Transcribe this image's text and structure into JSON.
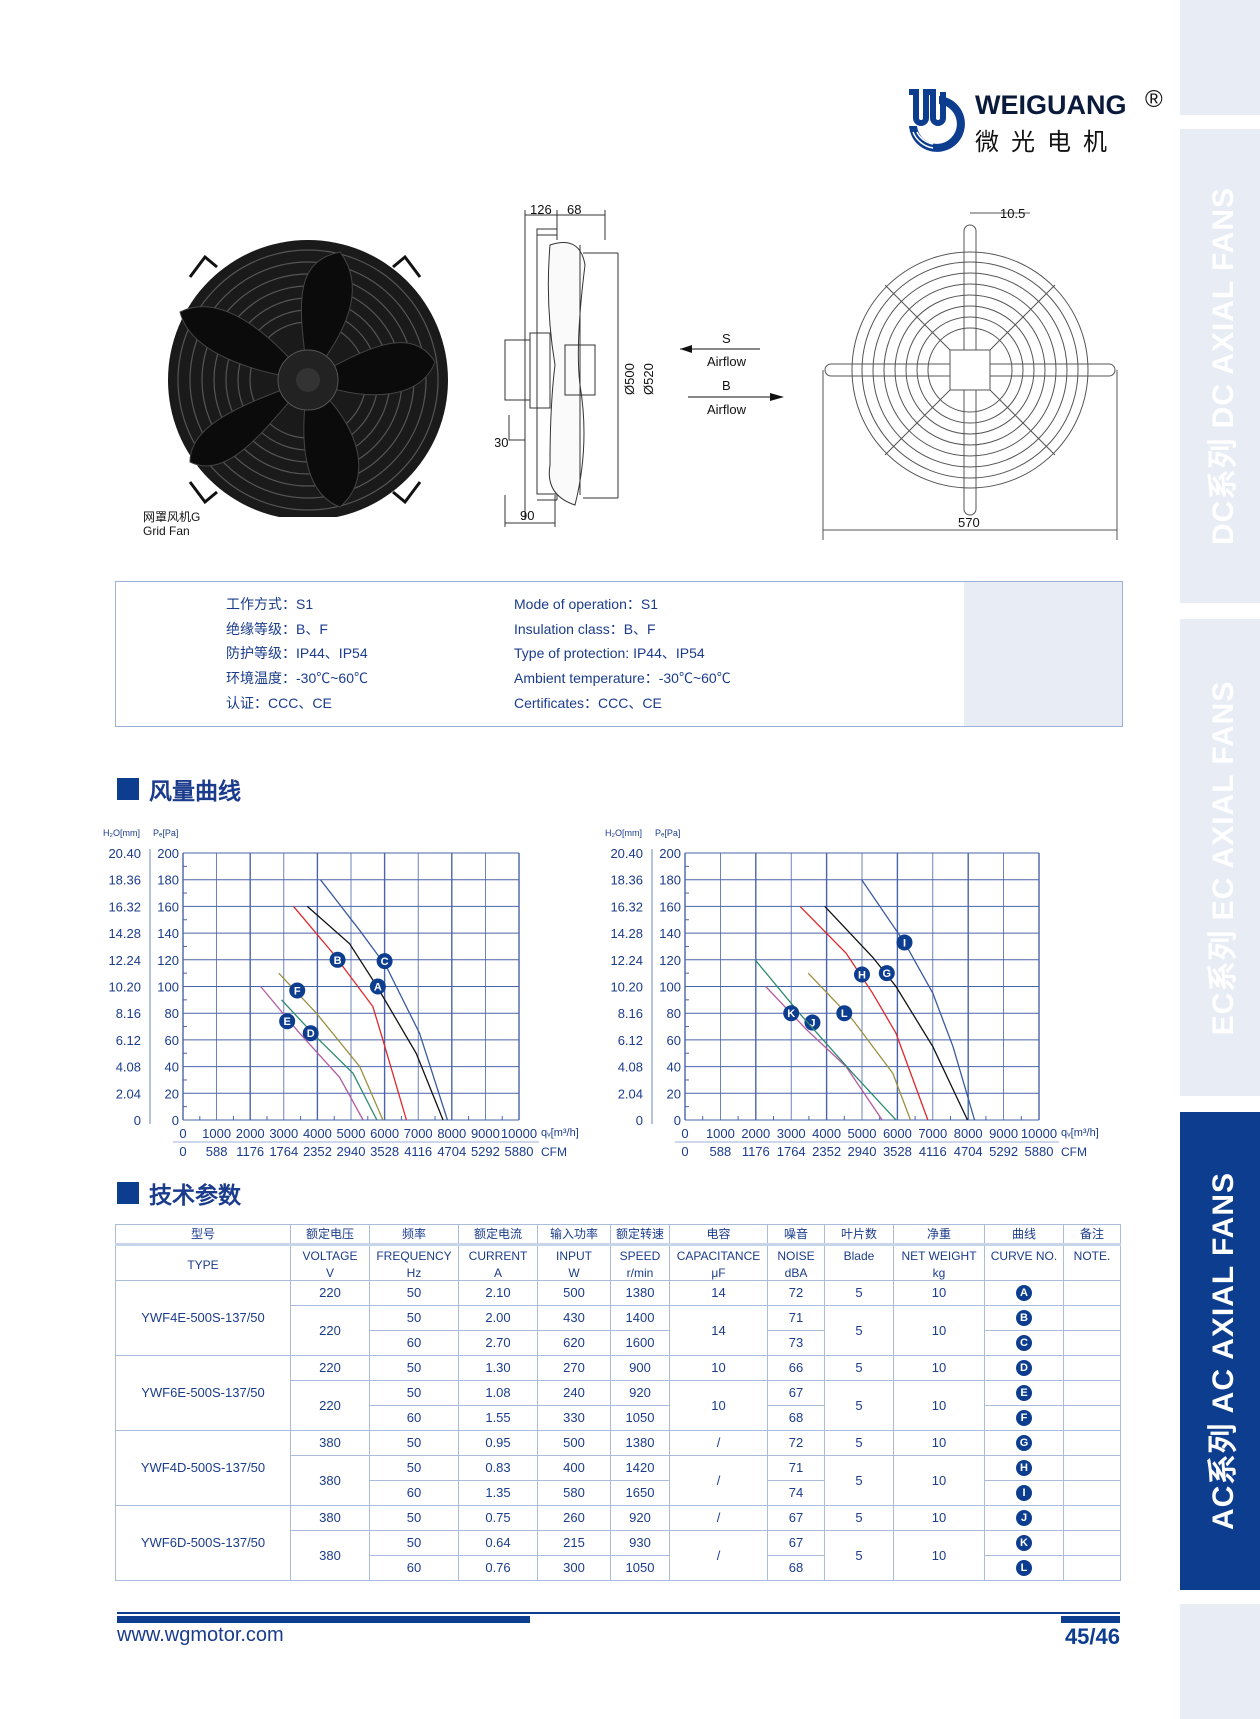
{
  "brand": {
    "name": "WEIGUANG",
    "registered": "®",
    "name_cn": "微光电机",
    "color": "#0d3d8f"
  },
  "sidebar": {
    "tabs": [
      {
        "label": "DC系列  DC AXIAL FANS",
        "active": false
      },
      {
        "label": "EC系列  EC AXIAL FANS",
        "active": false
      },
      {
        "label": "AC系列  AC AXIAL FANS",
        "active": true
      }
    ]
  },
  "product": {
    "photo_caption_cn": "网罩风机G",
    "photo_caption_en": "Grid Fan",
    "dims": {
      "d126": "126",
      "d68": "68",
      "d30": "30",
      "d90": "90",
      "d500": "Ø500",
      "d520": "Ø520",
      "d10_5": "10.5",
      "d570": "570"
    },
    "airflow": {
      "s": "S",
      "s_label": "Airflow",
      "b": "B",
      "b_label": "Airflow"
    }
  },
  "specs": {
    "cn": [
      "工作方式：S1",
      "绝缘等级：B、F",
      "防护等级：IP44、IP54",
      "环境温度：-30℃~60℃",
      "认证：CCC、CE"
    ],
    "en": [
      "Mode of operation：S1",
      "Insulation  class：B、F",
      "Type of protection: IP44、IP54",
      "Ambient  temperature：-30℃~60℃",
      "Certificates：CCC、CE"
    ]
  },
  "sections": {
    "curves": "风量曲线",
    "params": "技术参数"
  },
  "chart_data": [
    {
      "type": "line",
      "ylabel_left": "H₂O[mm]",
      "ylabel": "Pₑ[Pa]",
      "xlabel": "qᵥ[m³/h]",
      "xlabel2": "CFM",
      "xlim": [
        0,
        10000
      ],
      "ylim": [
        0,
        200
      ],
      "grid": true,
      "x_ticks": [
        "0",
        "1000",
        "2000",
        "3000",
        "4000",
        "5000",
        "6000",
        "7000",
        "8000",
        "9000",
        "10000"
      ],
      "x2_ticks": [
        "0",
        "588",
        "1176",
        "1764",
        "2352",
        "2940",
        "3528",
        "4116",
        "4704",
        "5292",
        "5880"
      ],
      "y_ticks": [
        "0",
        "20",
        "40",
        "60",
        "80",
        "100",
        "120",
        "140",
        "160",
        "180",
        "200"
      ],
      "y2_ticks": [
        "0",
        "2.04",
        "4.08",
        "6.12",
        "8.16",
        "10.20",
        "12.24",
        "14.28",
        "16.32",
        "18.36",
        "20.40"
      ],
      "series": [
        {
          "name": "A",
          "color": "#111111",
          "label_at": [
            5800,
            100
          ],
          "points": [
            [
              3700,
              160
            ],
            [
              4960,
              132
            ],
            [
              5750,
              101
            ],
            [
              6940,
              50
            ],
            [
              7740,
              0
            ]
          ]
        },
        {
          "name": "B",
          "color": "#e0262b",
          "label_at": [
            4600,
            120
          ],
          "points": [
            [
              3290,
              160
            ],
            [
              4460,
              125
            ],
            [
              5650,
              85
            ],
            [
              5950,
              60
            ],
            [
              6650,
              0
            ]
          ]
        },
        {
          "name": "C",
          "color": "#3a5a9e",
          "label_at": [
            6000,
            119
          ],
          "points": [
            [
              4090,
              180
            ],
            [
              5260,
              142
            ],
            [
              6050,
              115
            ],
            [
              7040,
              65
            ],
            [
              7870,
              0
            ]
          ]
        },
        {
          "name": "D",
          "color": "#2e8a6e",
          "label_at": [
            3800,
            65
          ],
          "points": [
            [
              2930,
              90
            ],
            [
              3970,
              62
            ],
            [
              5060,
              35
            ],
            [
              5770,
              0
            ]
          ]
        },
        {
          "name": "E",
          "color": "#b35ca3",
          "label_at": [
            3100,
            74
          ],
          "points": [
            [
              2310,
              100
            ],
            [
              3470,
              65
            ],
            [
              4660,
              32
            ],
            [
              5360,
              0
            ]
          ]
        },
        {
          "name": "F",
          "color": "#9a9040",
          "label_at": [
            3400,
            97
          ],
          "points": [
            [
              2850,
              110
            ],
            [
              3970,
              80
            ],
            [
              5260,
              40
            ],
            [
              5950,
              0
            ]
          ]
        }
      ]
    },
    {
      "type": "line",
      "ylabel_left": "H₂O[mm]",
      "ylabel": "Pₑ[Pa]",
      "xlabel": "qᵥ[m³/h]",
      "xlabel2": "CFM",
      "xlim": [
        0,
        10000
      ],
      "ylim": [
        0,
        200
      ],
      "grid": true,
      "x_ticks": [
        "0",
        "1000",
        "2000",
        "3000",
        "4000",
        "5000",
        "6000",
        "7000",
        "8000",
        "9000",
        "10000"
      ],
      "x2_ticks": [
        "0",
        "588",
        "1176",
        "1764",
        "2352",
        "2940",
        "3528",
        "4116",
        "4704",
        "5292",
        "5880"
      ],
      "y_ticks": [
        "0",
        "20",
        "40",
        "60",
        "80",
        "100",
        "120",
        "140",
        "160",
        "180",
        "200"
      ],
      "y2_ticks": [
        "0",
        "2.04",
        "4.08",
        "6.12",
        "8.16",
        "10.20",
        "12.24",
        "14.28",
        "16.32",
        "18.36",
        "20.40"
      ],
      "series": [
        {
          "name": "G",
          "color": "#111111",
          "label_at": [
            5700,
            110
          ],
          "points": [
            [
              3950,
              160
            ],
            [
              5300,
              122
            ],
            [
              5960,
              100
            ],
            [
              7000,
              55
            ],
            [
              7980,
              0
            ]
          ]
        },
        {
          "name": "H",
          "color": "#e0262b",
          "label_at": [
            5000,
            109
          ],
          "points": [
            [
              3250,
              160
            ],
            [
              4550,
              125
            ],
            [
              5300,
              95
            ],
            [
              5960,
              65
            ],
            [
              6860,
              0
            ]
          ]
        },
        {
          "name": "I",
          "color": "#3a5a9e",
          "label_at": [
            6200,
            133
          ],
          "points": [
            [
              4990,
              180
            ],
            [
              6200,
              133
            ],
            [
              7000,
              95
            ],
            [
              7570,
              55
            ],
            [
              8180,
              0
            ]
          ]
        },
        {
          "name": "J",
          "color": "#b35ca3",
          "label_at": [
            3600,
            73
          ],
          "points": [
            [
              2280,
              100
            ],
            [
              3420,
              68
            ],
            [
              4550,
              40
            ],
            [
              5570,
              0
            ]
          ]
        },
        {
          "name": "K",
          "color": "#2e8a6e",
          "label_at": [
            3000,
            80
          ],
          "points": [
            [
              1980,
              120
            ],
            [
              3230,
              80
            ],
            [
              4740,
              35
            ],
            [
              5960,
              0
            ]
          ]
        },
        {
          "name": "L",
          "color": "#9a9040",
          "label_at": [
            4500,
            80
          ],
          "points": [
            [
              3480,
              110
            ],
            [
              4740,
              75
            ],
            [
              5870,
              35
            ],
            [
              6370,
              0
            ]
          ]
        }
      ]
    }
  ],
  "table": {
    "headers_cn": [
      "型号",
      "额定电压",
      "频率",
      "额定电流",
      "输入功率",
      "额定转速",
      "电容",
      "噪音",
      "叶片数",
      "净重",
      "曲线",
      "备注"
    ],
    "headers_en": [
      "TYPE",
      "VOLTAGE",
      "FREQUENCY",
      "CURRENT",
      "INPUT",
      "SPEED",
      "CAPACITANCE",
      "NOISE",
      "Blade",
      "NET WEIGHT",
      "CURVE NO.",
      "NOTE."
    ],
    "units": [
      "",
      "V",
      "Hz",
      "A",
      "W",
      "r/min",
      "μF",
      "dBA",
      "",
      "kg",
      "",
      ""
    ],
    "models": [
      {
        "type": "YWF4E-500S-137/50",
        "single": {
          "voltage": "220",
          "freq": "50",
          "current": "2.10",
          "input": "500",
          "speed": "1380",
          "cap": "14",
          "noise": "72",
          "blade": "5",
          "weight": "10",
          "curve": "A"
        },
        "pair": {
          "voltage": "220",
          "cap": "14",
          "blade": "5",
          "weight": "10",
          "rows": [
            {
              "freq": "50",
              "current": "2.00",
              "input": "430",
              "speed": "1400",
              "noise": "71",
              "curve": "B"
            },
            {
              "freq": "60",
              "current": "2.70",
              "input": "620",
              "speed": "1600",
              "noise": "73",
              "curve": "C"
            }
          ]
        }
      },
      {
        "type": "YWF6E-500S-137/50",
        "single": {
          "voltage": "220",
          "freq": "50",
          "current": "1.30",
          "input": "270",
          "speed": "900",
          "cap": "10",
          "noise": "66",
          "blade": "5",
          "weight": "10",
          "curve": "D"
        },
        "pair": {
          "voltage": "220",
          "cap": "10",
          "blade": "5",
          "weight": "10",
          "rows": [
            {
              "freq": "50",
              "current": "1.08",
              "input": "240",
              "speed": "920",
              "noise": "67",
              "curve": "E"
            },
            {
              "freq": "60",
              "current": "1.55",
              "input": "330",
              "speed": "1050",
              "noise": "68",
              "curve": "F"
            }
          ]
        }
      },
      {
        "type": "YWF4D-500S-137/50",
        "single": {
          "voltage": "380",
          "freq": "50",
          "current": "0.95",
          "input": "500",
          "speed": "1380",
          "cap": "/",
          "noise": "72",
          "blade": "5",
          "weight": "10",
          "curve": "G"
        },
        "pair": {
          "voltage": "380",
          "cap": "/",
          "blade": "5",
          "weight": "10",
          "rows": [
            {
              "freq": "50",
              "current": "0.83",
              "input": "400",
              "speed": "1420",
              "noise": "71",
              "curve": "H"
            },
            {
              "freq": "60",
              "current": "1.35",
              "input": "580",
              "speed": "1650",
              "noise": "74",
              "curve": "I"
            }
          ]
        }
      },
      {
        "type": "YWF6D-500S-137/50",
        "single": {
          "voltage": "380",
          "freq": "50",
          "current": "0.75",
          "input": "260",
          "speed": "920",
          "cap": "/",
          "noise": "67",
          "blade": "5",
          "weight": "10",
          "curve": "J"
        },
        "pair": {
          "voltage": "380",
          "cap": "/",
          "blade": "5",
          "weight": "10",
          "rows": [
            {
              "freq": "50",
              "current": "0.64",
              "input": "215",
              "speed": "930",
              "noise": "67",
              "curve": "K"
            },
            {
              "freq": "60",
              "current": "0.76",
              "input": "300",
              "speed": "1050",
              "noise": "68",
              "curve": "L"
            }
          ]
        }
      }
    ]
  },
  "footer": {
    "url": "www.wgmotor.com",
    "page": "45/46"
  }
}
